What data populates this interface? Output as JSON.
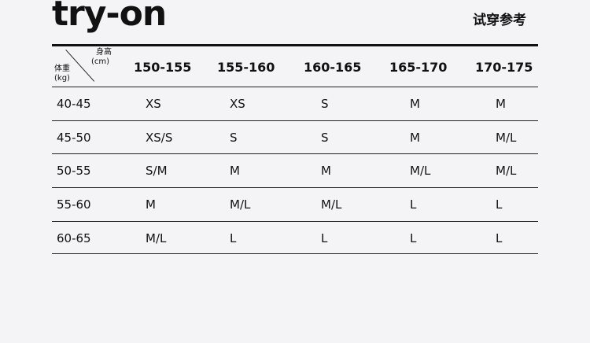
{
  "title": "try-on",
  "subtitle": "试穿参考",
  "table": {
    "corner": {
      "height_label": "身高",
      "height_unit": "(cm)",
      "weight_label": "体重",
      "weight_unit": "(kg)"
    },
    "columns": [
      "150-155",
      "155-160",
      "160-165",
      "165-170",
      "170-175"
    ],
    "rows": [
      {
        "weight": "40-45",
        "sizes": [
          "XS",
          "XS",
          "S",
          "M",
          "M"
        ]
      },
      {
        "weight": "45-50",
        "sizes": [
          "XS/S",
          "S",
          "S",
          "M",
          "M/L"
        ]
      },
      {
        "weight": "50-55",
        "sizes": [
          "S/M",
          "M",
          "M",
          "M/L",
          "M/L"
        ]
      },
      {
        "weight": "55-60",
        "sizes": [
          "M",
          "M/L",
          "M/L",
          "L",
          "L"
        ]
      },
      {
        "weight": "60-65",
        "sizes": [
          "M/L",
          "L",
          "L",
          "L",
          "L"
        ]
      }
    ]
  }
}
